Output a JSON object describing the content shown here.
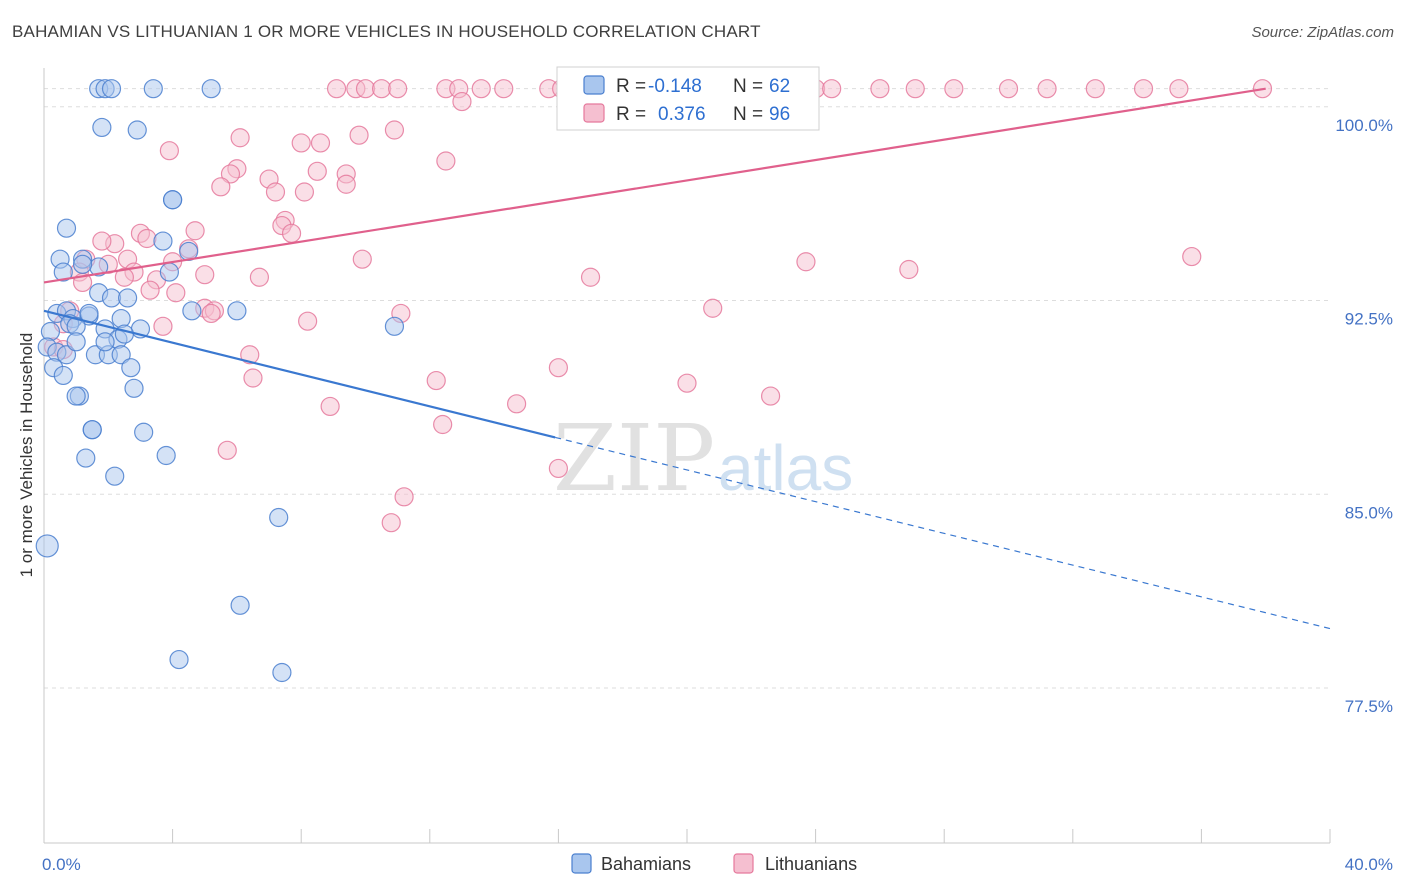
{
  "title": "BAHAMIAN VS LITHUANIAN 1 OR MORE VEHICLES IN HOUSEHOLD CORRELATION CHART",
  "source": "Source: ZipAtlas.com",
  "watermark": {
    "zip": "ZIP",
    "atlas": "atlas"
  },
  "colors": {
    "blue": "#4a7fcf",
    "blue_fill": "#a9c6ee",
    "blue_line": "#3a78d0",
    "pink": "#e5799c",
    "pink_fill": "#f5bfd0",
    "pink_line": "#e0608c",
    "tick_text": "#4472c4",
    "grid": "#dddddd"
  },
  "stats": {
    "r_label": "R =",
    "n_label": "N =",
    "blue": {
      "r": "-0.148",
      "n": "62"
    },
    "pink": {
      "r": "0.376",
      "n": "96"
    }
  },
  "legend": {
    "blue": "Bahamians",
    "pink": "Lithuanians"
  },
  "chart_data": {
    "type": "scatter",
    "title": "BAHAMIAN VS LITHUANIAN 1 OR MORE VEHICLES IN HOUSEHOLD CORRELATION CHART",
    "xlabel": "",
    "ylabel": "1 or more Vehicles in Household",
    "xlim": [
      0,
      40
    ],
    "ylim": [
      71.5,
      101.5
    ],
    "x_tick_labels": {
      "min": "0.0%",
      "max": "40.0%"
    },
    "y_ticks": [
      100.0,
      92.5,
      85.0,
      77.5
    ],
    "y_tick_labels": [
      "100.0%",
      "92.5%",
      "85.0%",
      "77.5%"
    ],
    "x_minor_ticks": [
      0,
      4,
      8,
      12,
      16,
      20,
      24,
      28,
      32,
      36,
      40
    ],
    "series": [
      {
        "name": "Bahamians",
        "color": "blue",
        "r": -0.148,
        "n": 62,
        "trend": {
          "x0": 0,
          "y0": 92.1,
          "x1": 15.9,
          "y1": 87.2,
          "dash_x1": 40,
          "dash_y1": 79.8
        },
        "points": [
          [
            1.7,
            100.7
          ],
          [
            1.9,
            100.7
          ],
          [
            2.1,
            100.7
          ],
          [
            3.4,
            100.7
          ],
          [
            5.2,
            100.7
          ],
          [
            1.8,
            99.2
          ],
          [
            2.9,
            99.1
          ],
          [
            4.0,
            96.4
          ],
          [
            4.0,
            96.4
          ],
          [
            0.7,
            95.3
          ],
          [
            3.7,
            94.8
          ],
          [
            0.5,
            94.1
          ],
          [
            1.2,
            94.1
          ],
          [
            1.7,
            93.8
          ],
          [
            4.5,
            94.4
          ],
          [
            0.6,
            93.6
          ],
          [
            1.2,
            93.9
          ],
          [
            3.9,
            93.6
          ],
          [
            1.7,
            92.8
          ],
          [
            2.1,
            92.6
          ],
          [
            2.6,
            92.6
          ],
          [
            0.4,
            92.0
          ],
          [
            0.7,
            92.1
          ],
          [
            0.9,
            91.8
          ],
          [
            1.4,
            91.9
          ],
          [
            1.4,
            92.0
          ],
          [
            0.8,
            91.6
          ],
          [
            1.0,
            91.5
          ],
          [
            0.2,
            91.3
          ],
          [
            1.9,
            91.4
          ],
          [
            3.0,
            91.4
          ],
          [
            2.4,
            91.8
          ],
          [
            2.3,
            91.0
          ],
          [
            4.6,
            92.1
          ],
          [
            6.0,
            92.1
          ],
          [
            10.9,
            91.5
          ],
          [
            0.1,
            90.7
          ],
          [
            0.4,
            90.5
          ],
          [
            0.7,
            90.4
          ],
          [
            1.0,
            90.9
          ],
          [
            1.6,
            90.4
          ],
          [
            2.0,
            90.4
          ],
          [
            1.9,
            90.9
          ],
          [
            2.4,
            90.4
          ],
          [
            0.3,
            89.9
          ],
          [
            0.6,
            89.6
          ],
          [
            2.7,
            89.9
          ],
          [
            2.8,
            89.1
          ],
          [
            1.1,
            88.8
          ],
          [
            1.5,
            87.5
          ],
          [
            1.5,
            87.5
          ],
          [
            3.1,
            87.4
          ],
          [
            1.3,
            86.4
          ],
          [
            3.8,
            86.5
          ],
          [
            2.2,
            85.7
          ],
          [
            7.3,
            84.1
          ],
          [
            0.1,
            83.0
          ],
          [
            6.1,
            80.7
          ],
          [
            4.2,
            78.6
          ],
          [
            7.4,
            78.1
          ],
          [
            1.0,
            88.8
          ],
          [
            2.5,
            91.2
          ]
        ]
      },
      {
        "name": "Lithuanians",
        "color": "pink",
        "r": 0.376,
        "n": 96,
        "trend": {
          "x0": 0,
          "y0": 93.2,
          "x1": 38.0,
          "y1": 100.7
        },
        "points": [
          [
            9.1,
            100.7
          ],
          [
            9.7,
            100.7
          ],
          [
            10.0,
            100.7
          ],
          [
            10.5,
            100.7
          ],
          [
            11.0,
            100.7
          ],
          [
            12.5,
            100.7
          ],
          [
            12.9,
            100.7
          ],
          [
            13.6,
            100.7
          ],
          [
            14.3,
            100.7
          ],
          [
            15.7,
            100.7
          ],
          [
            16.1,
            100.7
          ],
          [
            17.5,
            100.7
          ],
          [
            18.5,
            100.7
          ],
          [
            20.0,
            100.7
          ],
          [
            21.7,
            100.7
          ],
          [
            22.5,
            100.7
          ],
          [
            24.0,
            100.7
          ],
          [
            24.5,
            100.7
          ],
          [
            26.0,
            100.7
          ],
          [
            27.1,
            100.7
          ],
          [
            28.3,
            100.7
          ],
          [
            30.0,
            100.7
          ],
          [
            31.2,
            100.7
          ],
          [
            32.7,
            100.7
          ],
          [
            34.2,
            100.7
          ],
          [
            35.3,
            100.7
          ],
          [
            37.9,
            100.7
          ],
          [
            13.0,
            100.2
          ],
          [
            16.9,
            100.3
          ],
          [
            6.1,
            98.8
          ],
          [
            8.0,
            98.6
          ],
          [
            8.6,
            98.6
          ],
          [
            9.8,
            98.9
          ],
          [
            10.9,
            99.1
          ],
          [
            3.9,
            98.3
          ],
          [
            12.5,
            97.9
          ],
          [
            6.0,
            97.6
          ],
          [
            5.8,
            97.4
          ],
          [
            8.5,
            97.5
          ],
          [
            9.4,
            97.4
          ],
          [
            7.0,
            97.2
          ],
          [
            9.4,
            97.0
          ],
          [
            5.5,
            96.9
          ],
          [
            7.2,
            96.7
          ],
          [
            8.1,
            96.7
          ],
          [
            7.5,
            95.6
          ],
          [
            7.4,
            95.4
          ],
          [
            7.7,
            95.1
          ],
          [
            4.7,
            95.2
          ],
          [
            3.0,
            95.1
          ],
          [
            3.2,
            94.9
          ],
          [
            2.2,
            94.7
          ],
          [
            1.8,
            94.8
          ],
          [
            4.5,
            94.5
          ],
          [
            9.9,
            94.1
          ],
          [
            4.0,
            94.0
          ],
          [
            1.3,
            94.1
          ],
          [
            2.6,
            94.1
          ],
          [
            2.0,
            93.9
          ],
          [
            2.8,
            93.6
          ],
          [
            1.1,
            93.6
          ],
          [
            5.0,
            93.5
          ],
          [
            6.7,
            93.4
          ],
          [
            17.0,
            93.4
          ],
          [
            23.7,
            94.0
          ],
          [
            26.9,
            93.7
          ],
          [
            35.7,
            94.2
          ],
          [
            3.5,
            93.3
          ],
          [
            1.2,
            93.2
          ],
          [
            2.5,
            93.4
          ],
          [
            3.3,
            92.9
          ],
          [
            4.1,
            92.8
          ],
          [
            0.8,
            92.1
          ],
          [
            5.0,
            92.2
          ],
          [
            5.3,
            92.1
          ],
          [
            5.2,
            92.0
          ],
          [
            11.1,
            92.0
          ],
          [
            20.8,
            92.2
          ],
          [
            0.6,
            91.6
          ],
          [
            3.7,
            91.5
          ],
          [
            8.2,
            91.7
          ],
          [
            0.3,
            90.7
          ],
          [
            0.6,
            90.6
          ],
          [
            6.4,
            90.4
          ],
          [
            16.0,
            89.9
          ],
          [
            12.2,
            89.4
          ],
          [
            20.0,
            89.3
          ],
          [
            6.5,
            89.5
          ],
          [
            22.6,
            88.8
          ],
          [
            14.7,
            88.5
          ],
          [
            8.9,
            88.4
          ],
          [
            12.4,
            87.7
          ],
          [
            5.7,
            86.7
          ],
          [
            16.0,
            86.0
          ],
          [
            11.2,
            84.9
          ],
          [
            10.8,
            83.9
          ]
        ]
      }
    ]
  }
}
